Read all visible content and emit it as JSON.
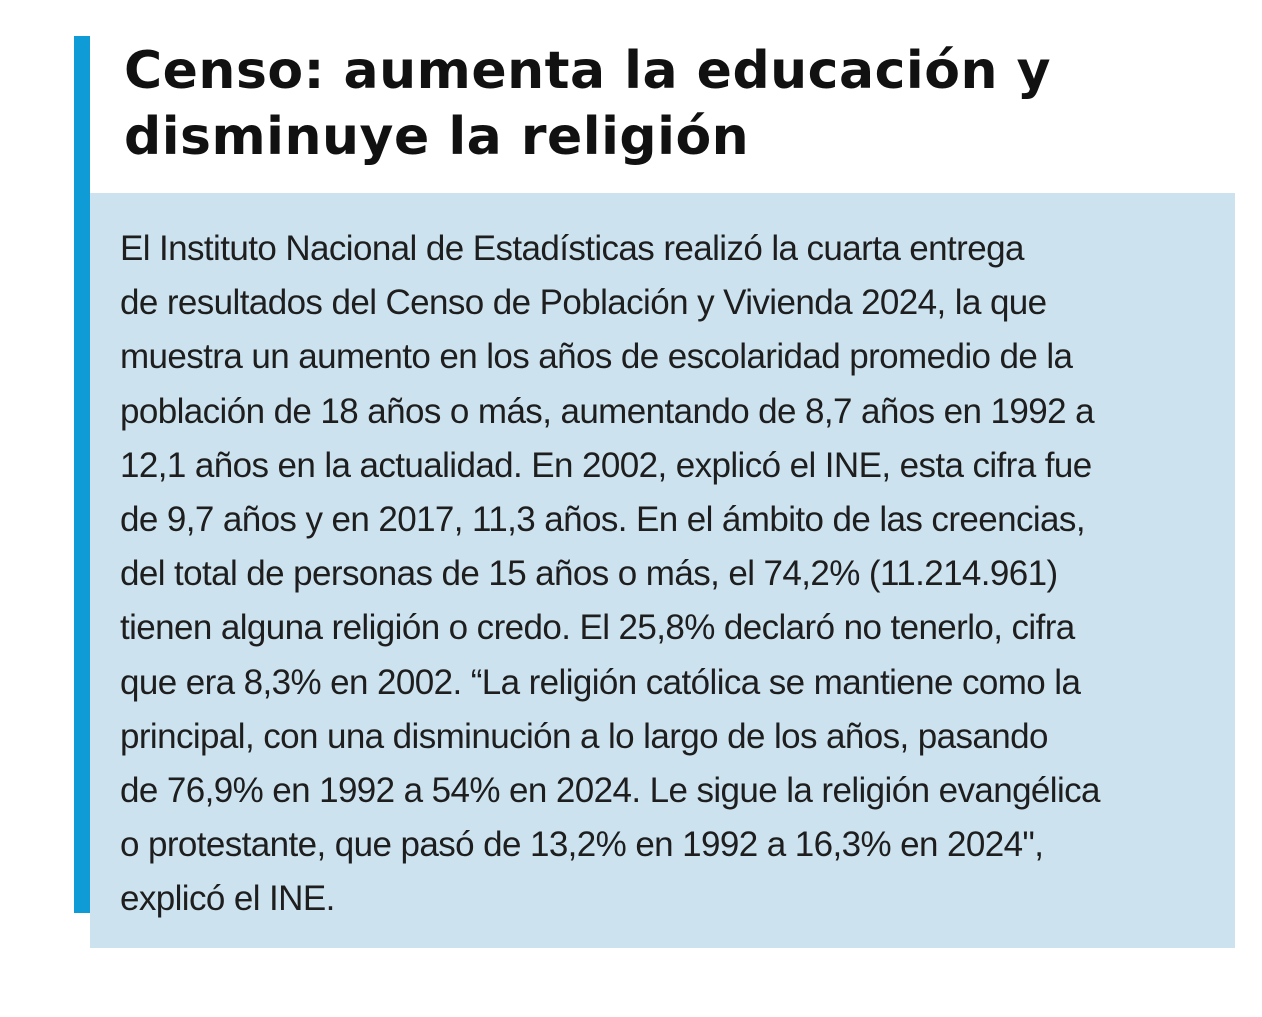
{
  "article": {
    "title_lines": [
      "Censo: aumenta la educación y",
      "disminuye la religión"
    ],
    "body_lines": [
      "El Instituto Nacional de Estadísticas realizó la cuarta entrega",
      "de resultados del Censo de Población y Vivienda 2024, la que",
      "muestra un aumento en los años de escolaridad promedio de la",
      "población de 18 años o más, aumentando de 8,7 años en 1992 a",
      "12,1 años en la actualidad. En 2002, explicó el INE, esta cifra fue",
      "de 9,7 años y en 2017, 11,3 años. En el ámbito de las creencias,",
      "del total de personas de 15 años o más, el 74,2% (11.214.961)",
      "tienen alguna religión o credo. El 25,8% declaró no tenerlo, cifra",
      "que era 8,3% en 2002. “La religión católica se mantiene como la",
      "principal, con una disminución a lo largo de los años, pasando",
      "de 76,9% en 1992 a 54% en 2024. Le sigue la religión evangélica",
      "o protestante, que pasó de 13,2% en 1992 a 16,3% en 2024\",",
      "explicó el INE."
    ]
  },
  "colors": {
    "accent": "#0e9bd6",
    "box_background": "#cce2ef",
    "text": "#1e1e1e"
  }
}
